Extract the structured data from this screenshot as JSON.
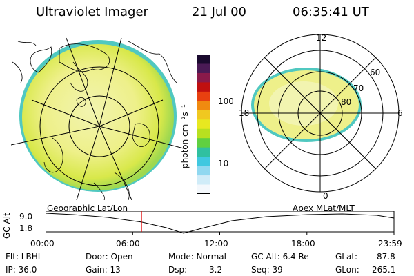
{
  "header": {
    "title": "Ultraviolet Imager",
    "date": "21 Jul 00",
    "time": "06:35:41 UT"
  },
  "colorbar": {
    "unit_label": "photon cm⁻²s⁻¹",
    "ticks": [
      "100",
      "10"
    ],
    "colors_top_to_bottom": [
      "#1a0a2e",
      "#4a1a55",
      "#8a1a4a",
      "#c01010",
      "#e84010",
      "#f08a10",
      "#f0c820",
      "#e8e820",
      "#b8e020",
      "#60d040",
      "#30c0a0",
      "#40c8e0",
      "#90d8f0",
      "#d0ecf8",
      "#f4f8fc"
    ]
  },
  "polar_plot": {
    "labels": {
      "top": "12",
      "right": "6",
      "bottom": "0",
      "left": "18"
    },
    "rings": [
      "60",
      "70",
      "80"
    ]
  },
  "timeline": {
    "left_label": "Geographic Lat/Lon",
    "right_label": "Apex MLat/MLT",
    "axis_label": "GC Alt",
    "y_ticks": [
      "9.0",
      "1.8"
    ],
    "x_ticks": [
      "00:00",
      "06:00",
      "12:00",
      "18:00",
      "23:59"
    ],
    "marker_time": "06:35:41",
    "marker_color": "#e00000"
  },
  "info": {
    "flt": "Flt: LBHL",
    "ip": "IP: 36.0",
    "door": "Door: Open",
    "gain": "Gain: 13",
    "mode": "Mode: Normal",
    "dsp_label": "Dsp:",
    "dsp_value": "3.2",
    "gcalt": "GC Alt: 6.4 Re",
    "seq": "Seq: 39",
    "glat_label": "GLat:",
    "glat_value": "87.8",
    "glon_label": "GLon:",
    "glon_value": "265.1"
  }
}
